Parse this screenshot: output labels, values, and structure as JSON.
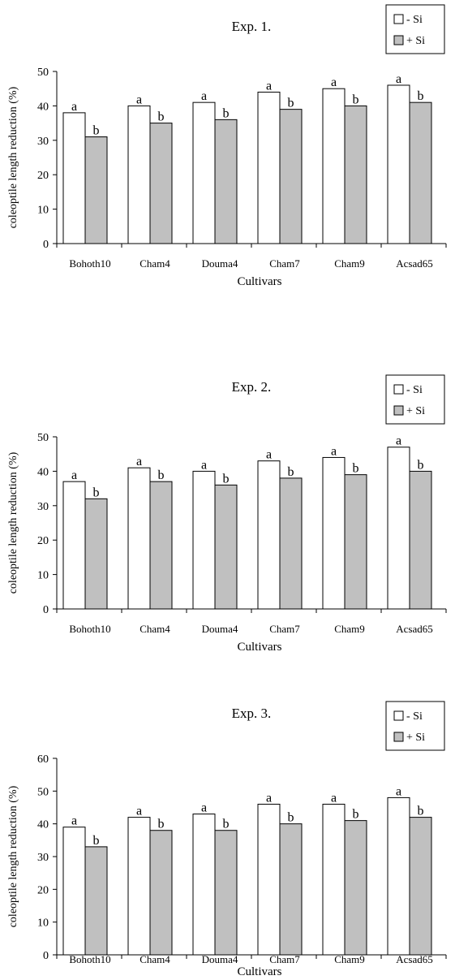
{
  "chart_data": [
    {
      "type": "bar",
      "title": "Exp. 1.",
      "xlabel": "Cultivars",
      "ylabel": "coleoptile length reduction (%)",
      "ylim": [
        0,
        50
      ],
      "yticks": [
        "0",
        "10",
        "20",
        "30",
        "40",
        "50"
      ],
      "grid": false,
      "legend_position": "top-right",
      "categories": [
        "Bohoth10",
        "Cham4",
        "Douma4",
        "Cham7",
        "Cham9",
        "Acsad65"
      ],
      "series": [
        {
          "name": "- Si",
          "color": "#ffffff",
          "values": [
            38,
            40,
            41,
            44,
            45,
            46
          ],
          "labels": [
            "a",
            "a",
            "a",
            "a",
            "a",
            "a"
          ]
        },
        {
          "name": "+ Si",
          "color": "#c0c0c0",
          "values": [
            31,
            35,
            36,
            39,
            40,
            41
          ],
          "labels": [
            "b",
            "b",
            "b",
            "b",
            "b",
            "b"
          ]
        }
      ]
    },
    {
      "type": "bar",
      "title": "Exp. 2.",
      "xlabel": "Cultivars",
      "ylabel": "coleoptile length reduction (%)",
      "ylim": [
        0,
        50
      ],
      "yticks": [
        "0",
        "10",
        "20",
        "30",
        "40",
        "50"
      ],
      "grid": false,
      "legend_position": "top-right",
      "categories": [
        "Bohoth10",
        "Cham4",
        "Douma4",
        "Cham7",
        "Cham9",
        "Acsad65"
      ],
      "series": [
        {
          "name": "- Si",
          "color": "#ffffff",
          "values": [
            37,
            41,
            40,
            43,
            44,
            47
          ],
          "labels": [
            "a",
            "a",
            "a",
            "a",
            "a",
            "a"
          ]
        },
        {
          "name": "+ Si",
          "color": "#c0c0c0",
          "values": [
            32,
            37,
            36,
            38,
            39,
            40
          ],
          "labels": [
            "b",
            "b",
            "b",
            "b",
            "b",
            "b"
          ]
        }
      ]
    },
    {
      "type": "bar",
      "title": "Exp. 3.",
      "xlabel": "Cultivars",
      "ylabel": "coleoptile length reduction (%)",
      "ylim": [
        0,
        60
      ],
      "yticks": [
        "0",
        "10",
        "20",
        "30",
        "40",
        "50",
        "60"
      ],
      "grid": false,
      "legend_position": "top-right",
      "categories": [
        "Bohoth10",
        "Cham4",
        "Douma4",
        "Cham7",
        "Cham9",
        "Acsad65"
      ],
      "series": [
        {
          "name": "- Si",
          "color": "#ffffff",
          "values": [
            39,
            42,
            43,
            46,
            46,
            48
          ],
          "labels": [
            "a",
            "a",
            "a",
            "a",
            "a",
            "a"
          ]
        },
        {
          "name": "+ Si",
          "color": "#c0c0c0",
          "values": [
            33,
            38,
            38,
            40,
            41,
            42
          ],
          "labels": [
            "b",
            "b",
            "b",
            "b",
            "b",
            "b"
          ]
        }
      ]
    }
  ]
}
